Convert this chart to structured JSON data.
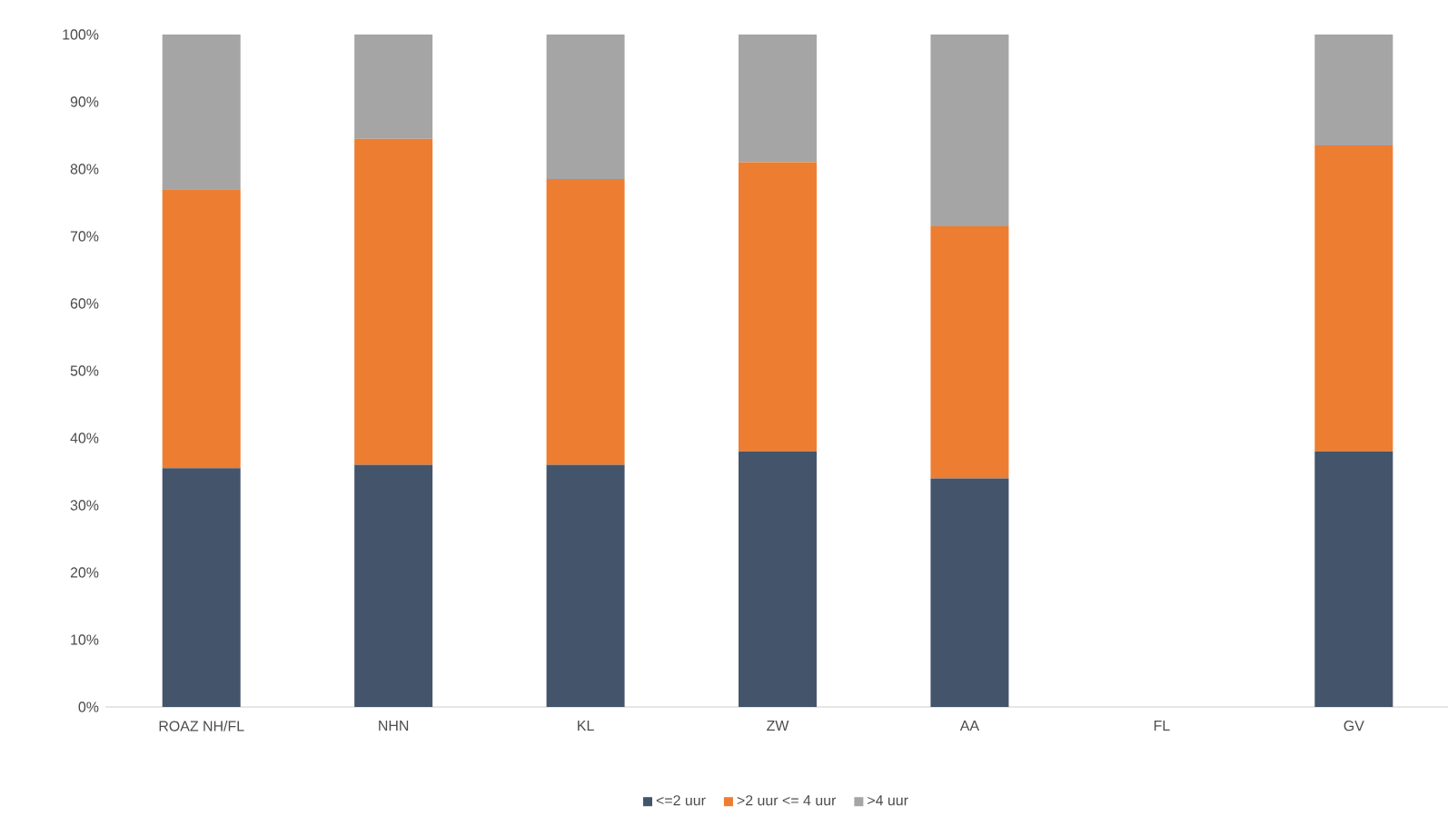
{
  "chart_data": {
    "type": "bar",
    "stacked": true,
    "categories": [
      "ROAZ NH/FL",
      "NHN",
      "KL",
      "ZW",
      "AA",
      "FL",
      "GV"
    ],
    "series": [
      {
        "name": "<=2 uur",
        "color": "#44546a",
        "values": [
          35.5,
          36,
          36,
          38,
          34,
          null,
          38
        ]
      },
      {
        "name": ">2 uur <= 4 uur",
        "color": "#ed7d31",
        "values": [
          41.5,
          48.5,
          42.5,
          43,
          37.5,
          null,
          45.5
        ]
      },
      {
        "name": ">4 uur",
        "color": "#a5a5a5",
        "values": [
          23,
          15.5,
          21.5,
          19,
          28.5,
          null,
          16.5
        ]
      }
    ],
    "ylim": [
      0,
      100
    ],
    "yticks": [
      {
        "value": 0,
        "label": "0%"
      },
      {
        "value": 10,
        "label": "10%"
      },
      {
        "value": 20,
        "label": "20%"
      },
      {
        "value": 30,
        "label": "30%"
      },
      {
        "value": 40,
        "label": "40%"
      },
      {
        "value": 50,
        "label": "50%"
      },
      {
        "value": 60,
        "label": "60%"
      },
      {
        "value": 70,
        "label": "70%"
      },
      {
        "value": 80,
        "label": "80%"
      },
      {
        "value": 90,
        "label": "90%"
      },
      {
        "value": 100,
        "label": "100%"
      }
    ],
    "legend": "bottom"
  }
}
